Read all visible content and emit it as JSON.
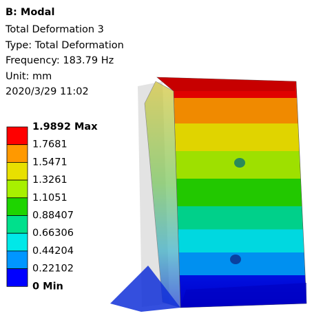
{
  "header": {
    "title": "B: Modal",
    "lines": [
      "Total Deformation 3",
      "Type: Total Deformation",
      "Frequency: 183.79 Hz",
      "Unit: mm",
      "2020/3/29 11:02"
    ]
  },
  "legend": {
    "labels": [
      "1.9892 Max",
      "1.7681",
      "1.5471",
      "1.3261",
      "1.1051",
      "0.88407",
      "0.66306",
      "0.44204",
      "0.22102",
      "0 Min"
    ],
    "colors": [
      "#ff0000",
      "#ff9900",
      "#e8e000",
      "#a8f000",
      "#1ed400",
      "#00e08c",
      "#00e8e8",
      "#0096ff",
      "#0000ff"
    ]
  }
}
